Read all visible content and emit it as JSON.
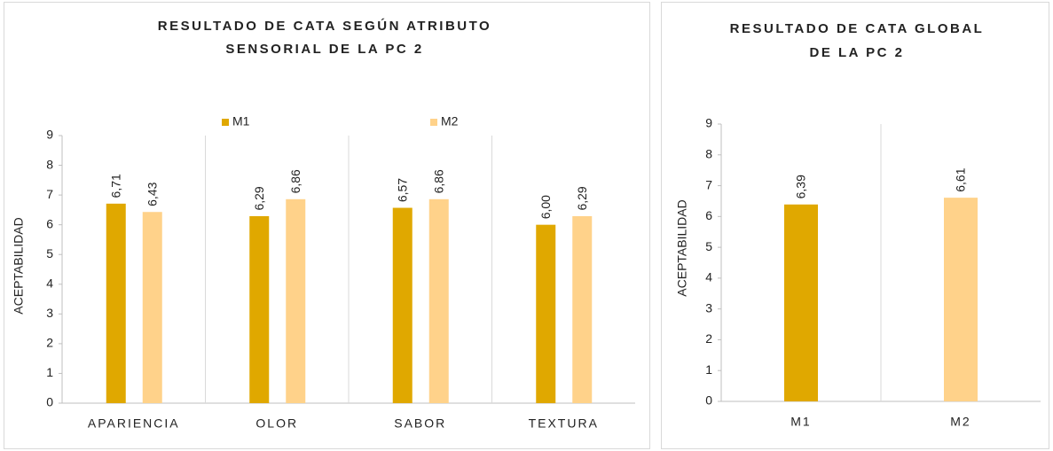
{
  "chart_data": [
    {
      "type": "bar",
      "title": [
        "RESULTADO DE CATA SEGÚN ATRIBUTO",
        "SENSORIAL DE LA PC 2"
      ],
      "y_label": "ACEPTABILIDAD",
      "categories": [
        "APARIENCIA",
        "OLOR",
        "SABOR",
        "TEXTURA"
      ],
      "series": [
        {
          "name": "M1",
          "color": "#e0a800",
          "values": [
            6.71,
            6.29,
            6.57,
            6.0
          ],
          "value_labels": [
            "6,71",
            "6,29",
            "6,57",
            "6,00"
          ]
        },
        {
          "name": "M2",
          "color": "#ffd28a",
          "values": [
            6.43,
            6.86,
            6.86,
            6.29
          ],
          "value_labels": [
            "6,43",
            "6,86",
            "6,86",
            "6,29"
          ]
        }
      ],
      "ylim": [
        0,
        9
      ],
      "yticks": [
        0,
        1,
        2,
        3,
        4,
        5,
        6,
        7,
        8,
        9
      ],
      "legend": "top"
    },
    {
      "type": "bar",
      "title": [
        "RESULTADO DE CATA GLOBAL",
        "DE LA PC 2"
      ],
      "y_label": "ACEPTABILIDAD",
      "categories": [
        "M1",
        "M2"
      ],
      "values": [
        6.39,
        6.61
      ],
      "value_labels": [
        "6,39",
        "6,61"
      ],
      "colors": [
        "#e0a800",
        "#ffd28a"
      ],
      "ylim": [
        0,
        9
      ],
      "yticks": [
        0,
        1,
        2,
        3,
        4,
        5,
        6,
        7,
        8,
        9
      ]
    }
  ]
}
